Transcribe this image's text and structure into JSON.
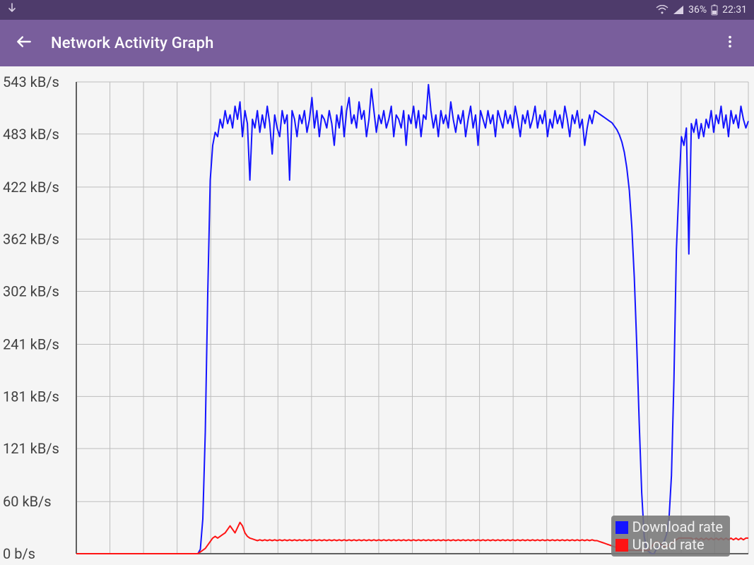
{
  "status_bar": {
    "bg": "#4e3b6b",
    "fg": "#e8e2ef",
    "left_icons": [
      "download-arrow"
    ],
    "battery_pct": "36%",
    "clock": "22:31"
  },
  "app_bar": {
    "bg": "#795e9c",
    "title": "Network Activity Graph"
  },
  "chart": {
    "type": "line",
    "plot_bg": "#f5f5f5",
    "grid_color": "#bdbdbd",
    "grid_width": 1,
    "axis_line_color": "#606060",
    "axis_line_width": 2,
    "axis_font_size": 20,
    "axis_font_color": "#424242",
    "y_ticks": [
      0,
      60,
      121,
      181,
      241,
      302,
      362,
      422,
      483,
      543
    ],
    "y_tick_labels": [
      "0 b/s",
      "60 kB/s",
      "121 kB/s",
      "181 kB/s",
      "241 kB/s",
      "302 kB/s",
      "362 kB/s",
      "422 kB/s",
      "483 kB/s",
      "543 kB/s"
    ],
    "ylim": [
      0,
      543
    ],
    "x_grid_count": 20,
    "series": [
      {
        "name": "download",
        "label": "Download rate",
        "color": "#1414ff",
        "width": 2,
        "data": [
          0,
          0,
          0,
          0,
          0,
          0,
          0,
          0,
          0,
          0,
          0,
          0,
          0,
          0,
          0,
          0,
          0,
          0,
          0,
          0,
          0,
          0,
          0,
          0,
          0,
          0,
          0,
          0,
          0,
          0,
          0,
          0,
          0,
          0,
          0,
          0,
          0,
          0,
          0,
          0,
          0,
          0,
          0,
          0,
          0,
          0,
          0,
          0,
          0,
          0,
          5,
          40,
          140,
          300,
          430,
          470,
          485,
          480,
          500,
          490,
          510,
          495,
          505,
          490,
          515,
          500,
          520,
          480,
          510,
          495,
          430,
          500,
          490,
          510,
          485,
          505,
          490,
          515,
          495,
          460,
          505,
          490,
          480,
          510,
          495,
          505,
          430,
          510,
          500,
          480,
          505,
          495,
          510,
          485,
          500,
          525,
          490,
          510,
          480,
          505,
          500,
          490,
          510,
          495,
          470,
          505,
          490,
          515,
          480,
          510,
          525,
          495,
          505,
          490,
          520,
          500,
          510,
          480,
          500,
          535,
          510,
          485,
          505,
          495,
          510,
          490,
          500,
          515,
          480,
          505,
          500,
          490,
          510,
          470,
          505,
          495,
          515,
          490,
          510,
          480,
          505,
          500,
          540,
          510,
          490,
          505,
          480,
          510,
          495,
          505,
          490,
          520,
          500,
          485,
          505,
          495,
          510,
          480,
          500,
          515,
          490,
          505,
          470,
          510,
          500,
          490,
          510,
          495,
          505,
          480,
          510,
          500,
          490,
          510,
          495,
          505,
          490,
          515,
          500,
          480,
          505,
          495,
          510,
          490,
          500,
          515,
          490,
          505,
          495,
          510,
          480,
          500,
          490,
          510,
          495,
          505,
          490,
          515,
          500,
          480,
          505,
          495,
          510,
          490,
          500,
          470,
          490,
          505,
          495,
          510,
          508,
          506,
          504,
          502,
          500,
          498,
          496,
          492,
          488,
          482,
          474,
          462,
          444,
          418,
          376,
          318,
          240,
          150,
          70,
          20,
          5,
          2,
          0,
          0,
          6,
          8,
          10,
          14,
          22,
          40,
          90,
          200,
          350,
          420,
          480,
          470,
          490,
          345,
          495,
          485,
          500,
          478,
          495,
          480,
          500,
          490,
          510,
          485,
          505,
          495,
          515,
          490,
          505,
          480,
          510,
          495,
          505,
          490,
          515,
          500,
          490,
          498
        ]
      },
      {
        "name": "upload",
        "label": "Upload rate",
        "color": "#ff1414",
        "width": 2,
        "data": [
          0,
          0,
          0,
          0,
          0,
          0,
          0,
          0,
          0,
          0,
          0,
          0,
          0,
          0,
          0,
          0,
          0,
          0,
          0,
          0,
          0,
          0,
          0,
          0,
          0,
          0,
          0,
          0,
          0,
          0,
          0,
          0,
          0,
          0,
          0,
          0,
          0,
          0,
          0,
          0,
          0,
          0,
          0,
          0,
          0,
          0,
          0,
          0,
          0,
          0,
          2,
          4,
          6,
          10,
          14,
          18,
          20,
          18,
          20,
          22,
          24,
          28,
          32,
          28,
          24,
          30,
          36,
          32,
          24,
          20,
          18,
          17,
          16,
          15,
          16,
          15,
          16,
          15,
          16,
          15,
          16,
          15,
          16,
          15,
          16,
          15,
          16,
          15,
          16,
          15,
          16,
          15,
          16,
          15,
          16,
          15,
          16,
          15,
          16,
          15,
          16,
          15,
          16,
          15,
          16,
          15,
          16,
          15,
          16,
          15,
          16,
          15,
          16,
          15,
          16,
          15,
          16,
          15,
          16,
          15,
          16,
          15,
          16,
          15,
          16,
          15,
          16,
          15,
          16,
          15,
          16,
          15,
          16,
          15,
          16,
          15,
          16,
          15,
          16,
          15,
          16,
          15,
          16,
          15,
          16,
          15,
          16,
          15,
          16,
          15,
          16,
          15,
          16,
          15,
          16,
          15,
          16,
          15,
          16,
          15,
          16,
          15,
          16,
          15,
          16,
          15,
          16,
          15,
          16,
          15,
          16,
          15,
          16,
          15,
          16,
          15,
          16,
          15,
          16,
          15,
          16,
          15,
          16,
          15,
          16,
          15,
          16,
          15,
          16,
          15,
          16,
          15,
          16,
          15,
          16,
          15,
          16,
          15,
          16,
          15,
          16,
          15,
          16,
          15,
          16,
          15,
          16,
          15,
          16,
          15,
          15,
          14,
          13,
          12,
          11,
          10,
          9,
          8,
          7,
          6,
          5,
          4,
          4,
          4,
          4,
          4,
          4,
          4,
          4,
          4,
          4,
          4,
          8,
          12,
          14,
          12,
          10,
          8,
          8,
          10,
          12,
          14,
          16,
          18,
          18,
          18,
          18,
          18,
          18,
          16,
          18,
          16,
          18,
          16,
          18,
          16,
          18,
          16,
          18,
          16,
          18,
          16,
          18,
          16,
          18,
          16,
          18,
          16,
          18,
          16,
          18,
          18
        ]
      }
    ]
  },
  "legend": {
    "bg": "rgba(120,120,120,0.88)",
    "text_color": "#f0f0f0",
    "font_size": 20
  }
}
